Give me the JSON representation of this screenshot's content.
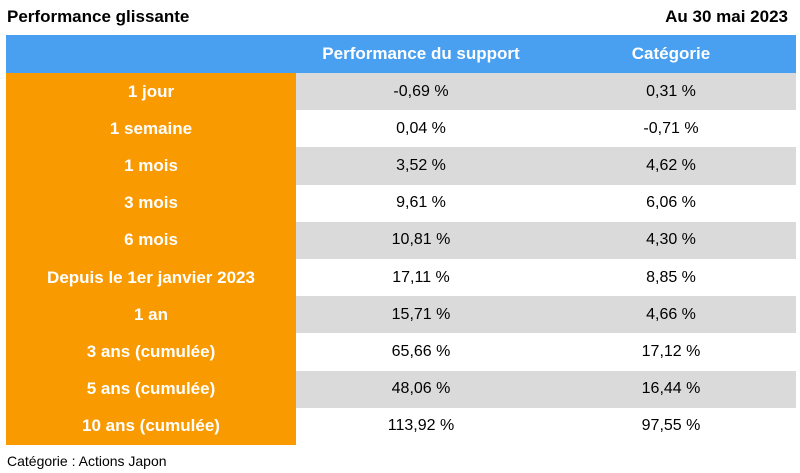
{
  "title": "Performance glissante",
  "date": "Au 30 mai 2023",
  "table": {
    "headers": [
      "",
      "Performance du support",
      "Catégorie"
    ],
    "rows": [
      {
        "label": "1 jour",
        "support": "-0,69 %",
        "categorie": "0,31 %"
      },
      {
        "label": "1 semaine",
        "support": "0,04 %",
        "categorie": "-0,71 %"
      },
      {
        "label": "1 mois",
        "support": "3,52 %",
        "categorie": "4,62 %"
      },
      {
        "label": "3 mois",
        "support": "9,61 %",
        "categorie": "6,06 %"
      },
      {
        "label": "6 mois",
        "support": "10,81 %",
        "categorie": "4,30 %"
      },
      {
        "label": "Depuis le 1er janvier 2023",
        "support": "17,11 %",
        "categorie": "8,85 %"
      },
      {
        "label": "1 an",
        "support": "15,71 %",
        "categorie": "4,66 %"
      },
      {
        "label": "3 ans (cumulée)",
        "support": "65,66 %",
        "categorie": "17,12 %"
      },
      {
        "label": "5 ans (cumulée)",
        "support": "48,06 %",
        "categorie": "16,44 %"
      },
      {
        "label": "10 ans (cumulée)",
        "support": "113,92 %",
        "categorie": "97,55 %"
      }
    ]
  },
  "footer": "Catégorie : Actions Japon",
  "colors": {
    "header": "#4aa0f0",
    "label_column": "#f89a00",
    "shaded_row": "#dadada"
  }
}
